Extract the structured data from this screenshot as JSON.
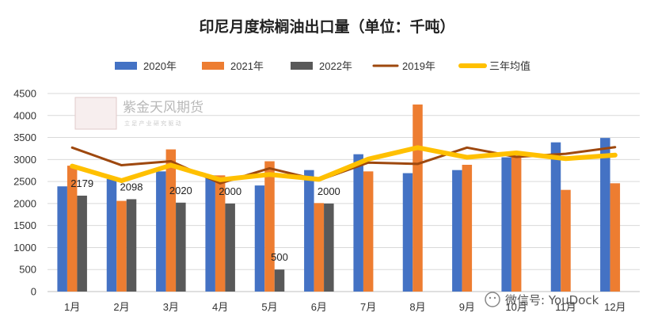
{
  "chart_data": {
    "type": "bar",
    "title": "印尼月度棕榈油出口量（单位：千吨）",
    "categories": [
      "1月",
      "2月",
      "3月",
      "4月",
      "5月",
      "6月",
      "7月",
      "8月",
      "9月",
      "10月",
      "11月",
      "12月"
    ],
    "ylim": [
      0,
      4500
    ],
    "yticks": [
      0,
      500,
      1000,
      1500,
      2000,
      2500,
      3000,
      3500,
      4000,
      4500
    ],
    "grid": true,
    "legend_position": "top",
    "bar_series": [
      {
        "name": "2020年",
        "color": "#4472C4",
        "values": [
          2390,
          2560,
          2730,
          2640,
          2410,
          2760,
          3120,
          2690,
          2760,
          3050,
          3390,
          3490
        ]
      },
      {
        "name": "2021年",
        "color": "#ED7D31",
        "values": [
          2860,
          2060,
          3230,
          2640,
          2960,
          2010,
          2730,
          4250,
          2880,
          3090,
          2310,
          2460
        ]
      },
      {
        "name": "2022年",
        "color": "#595959",
        "values": [
          2179,
          2098,
          2020,
          2000,
          500,
          2000,
          null,
          null,
          null,
          null,
          null,
          null
        ]
      }
    ],
    "line_series": [
      {
        "name": "2019年",
        "color": "#9E480E",
        "values": [
          3270,
          2870,
          2960,
          2460,
          2800,
          2530,
          2930,
          2900,
          3270,
          3060,
          3130,
          3280
        ]
      },
      {
        "name": "三年均值",
        "color": "#FFC000",
        "values": [
          2850,
          2520,
          2870,
          2540,
          2660,
          2550,
          3010,
          3270,
          3050,
          3150,
          3020,
          3100
        ]
      }
    ],
    "data_labels": [
      {
        "category_index": 0,
        "text": "2179"
      },
      {
        "category_index": 1,
        "text": "2098"
      },
      {
        "category_index": 2,
        "text": "2020"
      },
      {
        "category_index": 3,
        "text": "2000"
      },
      {
        "category_index": 4,
        "text": "500"
      },
      {
        "category_index": 5,
        "text": "2000"
      }
    ]
  },
  "watermark": {
    "name": "紫金天风期货",
    "tagline": "立 足 产 业   研 究 驱 动"
  },
  "footer": {
    "text": "微信号: YouDock"
  },
  "colors": {
    "grid": "#d9d9d9",
    "axis": "#bfbfbf",
    "logo": "#c9a0a0"
  }
}
